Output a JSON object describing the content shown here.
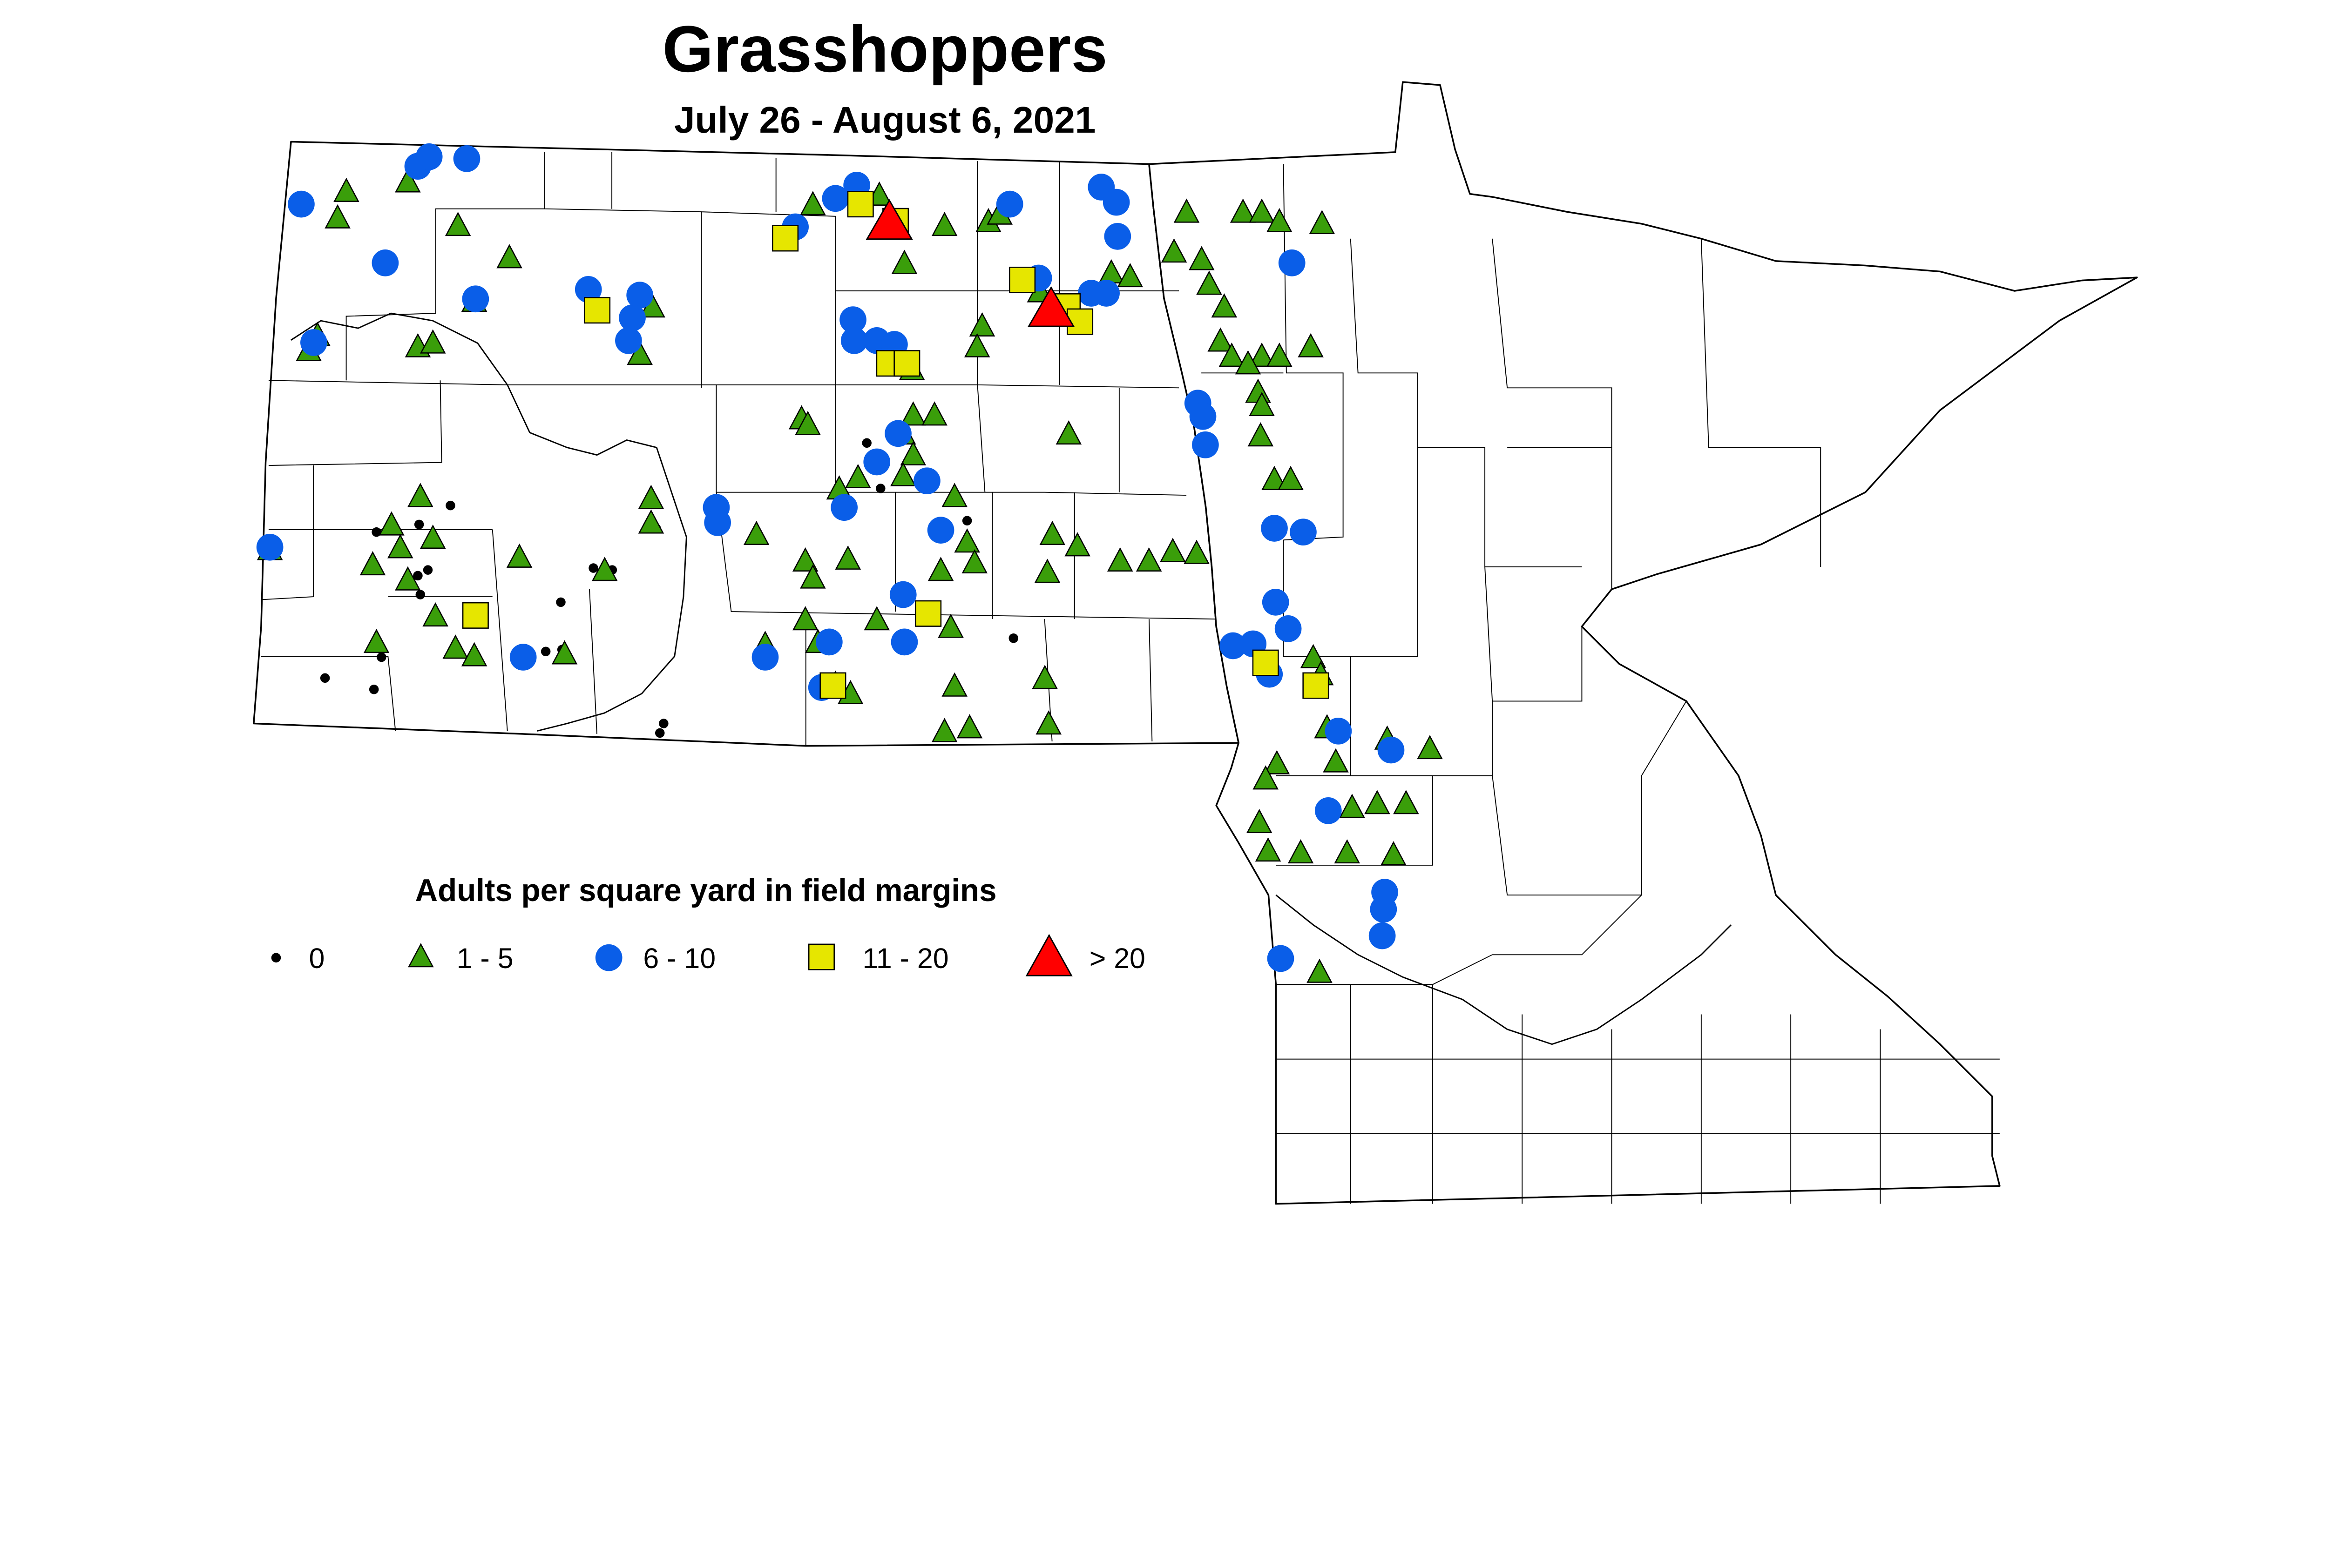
{
  "title": "Grasshoppers",
  "subtitle": "July 26 - August 6, 2021",
  "legend": {
    "title": "Adults per square yard in field margins",
    "items": [
      {
        "key": "zero",
        "label": "0",
        "shape": "dot",
        "color": "#000000"
      },
      {
        "key": "low",
        "label": "1 - 5",
        "shape": "triangle",
        "color": "#3a9e0a"
      },
      {
        "key": "mid",
        "label": "6 - 10",
        "shape": "circle",
        "color": "#0a5ee8"
      },
      {
        "key": "high",
        "label": "11 - 20",
        "shape": "square",
        "color": "#e6e600"
      },
      {
        "key": "severe",
        "label": "> 20",
        "shape": "large-triangle",
        "color": "#ff0000"
      }
    ]
  },
  "chart_data": {
    "type": "map",
    "regions": [
      "North Dakota",
      "Minnesota"
    ],
    "points": {
      "zero": [
        [
          -99.28,
          47.45
        ],
        [
          -99.17,
          47.21
        ],
        [
          -98.48,
          47.04
        ],
        [
          -102.6,
          47.12
        ],
        [
          -103.19,
          46.98
        ],
        [
          -102.85,
          47.02
        ],
        [
          -102.78,
          46.78
        ],
        [
          -102.86,
          46.75
        ],
        [
          -102.84,
          46.65
        ],
        [
          -101.72,
          46.61
        ],
        [
          -101.31,
          46.78
        ],
        [
          -101.46,
          46.79
        ],
        [
          -103.15,
          46.32
        ],
        [
          -101.84,
          46.35
        ],
        [
          -101.71,
          46.36
        ],
        [
          -100.96,
          47.0
        ],
        [
          -103.6,
          46.21
        ],
        [
          -103.21,
          46.15
        ],
        [
          -100.9,
          45.97
        ],
        [
          -100.93,
          45.92
        ],
        [
          -98.11,
          46.42
        ]
      ],
      "low": [
        [
          -103.43,
          48.78
        ],
        [
          -103.5,
          48.64
        ],
        [
          -102.94,
          48.83
        ],
        [
          -102.54,
          48.6
        ],
        [
          -102.13,
          48.43
        ],
        [
          -102.41,
          48.2
        ],
        [
          -103.66,
          48.02
        ],
        [
          -103.73,
          47.94
        ],
        [
          -102.86,
          47.96
        ],
        [
          -102.74,
          47.98
        ],
        [
          -100.99,
          48.17
        ],
        [
          -101.09,
          47.92
        ],
        [
          -99.71,
          48.71
        ],
        [
          -99.18,
          48.76
        ],
        [
          -98.66,
          48.6
        ],
        [
          -98.98,
          48.4
        ],
        [
          -98.31,
          48.62
        ],
        [
          -98.22,
          48.66
        ],
        [
          -98.36,
          48.07
        ],
        [
          -98.4,
          47.96
        ],
        [
          -98.92,
          47.84
        ],
        [
          -97.9,
          48.25
        ],
        [
          -97.33,
          48.35
        ],
        [
          -97.18,
          48.33
        ],
        [
          -96.73,
          48.67
        ],
        [
          -96.83,
          48.46
        ],
        [
          -96.61,
          48.42
        ],
        [
          -96.55,
          48.29
        ],
        [
          -96.43,
          48.17
        ],
        [
          -96.28,
          48.67
        ],
        [
          -96.13,
          48.67
        ],
        [
          -95.99,
          48.62
        ],
        [
          -95.65,
          48.61
        ],
        [
          -96.46,
          47.99
        ],
        [
          -96.37,
          47.91
        ],
        [
          -96.13,
          47.91
        ],
        [
          -95.99,
          47.91
        ],
        [
          -95.74,
          47.96
        ],
        [
          -96.24,
          47.87
        ],
        [
          -96.16,
          47.72
        ],
        [
          -96.13,
          47.65
        ],
        [
          -96.14,
          47.49
        ],
        [
          -96.03,
          47.26
        ],
        [
          -95.9,
          47.26
        ],
        [
          -99.8,
          47.58
        ],
        [
          -99.75,
          47.55
        ],
        [
          -98.91,
          47.6
        ],
        [
          -98.74,
          47.6
        ],
        [
          -98.99,
          47.5
        ],
        [
          -98.91,
          47.39
        ],
        [
          -99.5,
          47.21
        ],
        [
          -99.35,
          47.27
        ],
        [
          -98.99,
          47.28
        ],
        [
          -98.58,
          47.17
        ],
        [
          -98.48,
          46.93
        ],
        [
          -98.42,
          46.82
        ],
        [
          -98.69,
          46.78
        ],
        [
          -99.43,
          46.84
        ],
        [
          -99.77,
          46.83
        ],
        [
          -99.71,
          46.74
        ],
        [
          -100.16,
          46.97
        ],
        [
          -101.0,
          47.16
        ],
        [
          -101.0,
          47.03
        ],
        [
          -102.05,
          46.85
        ],
        [
          -101.37,
          46.78
        ],
        [
          -102.84,
          47.17
        ],
        [
          -102.74,
          46.95
        ],
        [
          -103.07,
          47.02
        ],
        [
          -103.0,
          46.9
        ],
        [
          -103.22,
          46.81
        ],
        [
          -102.94,
          46.73
        ],
        [
          -104.04,
          46.89
        ],
        [
          -102.72,
          46.54
        ],
        [
          -102.56,
          46.37
        ],
        [
          -102.41,
          46.33
        ],
        [
          -103.19,
          46.4
        ],
        [
          -101.69,
          46.34
        ],
        [
          -99.77,
          46.52
        ],
        [
          -99.67,
          46.4
        ],
        [
          -100.09,
          46.39
        ],
        [
          -99.53,
          46.18
        ],
        [
          -99.41,
          46.13
        ],
        [
          -99.2,
          46.52
        ],
        [
          -98.61,
          46.48
        ],
        [
          -98.58,
          46.17
        ],
        [
          -97.86,
          46.21
        ],
        [
          -97.83,
          45.97
        ],
        [
          -98.66,
          45.93
        ],
        [
          -98.46,
          45.95
        ],
        [
          -97.67,
          47.5
        ],
        [
          -97.8,
          46.97
        ],
        [
          -97.6,
          46.91
        ],
        [
          -97.84,
          46.77
        ],
        [
          -97.26,
          46.83
        ],
        [
          -97.03,
          46.83
        ],
        [
          -96.84,
          46.88
        ],
        [
          -96.65,
          46.87
        ],
        [
          -95.72,
          46.32
        ],
        [
          -95.66,
          46.23
        ],
        [
          -95.61,
          45.95
        ],
        [
          -95.13,
          45.89
        ],
        [
          -94.79,
          45.84
        ],
        [
          -95.54,
          45.77
        ],
        [
          -96.01,
          45.76
        ],
        [
          -96.1,
          45.68
        ],
        [
          -96.15,
          45.45
        ],
        [
          -96.08,
          45.3
        ],
        [
          -95.82,
          45.29
        ],
        [
          -95.41,
          45.53
        ],
        [
          -95.21,
          45.55
        ],
        [
          -94.98,
          45.55
        ],
        [
          -95.45,
          45.29
        ],
        [
          -95.08,
          45.28
        ],
        [
          -95.67,
          44.66
        ]
      ],
      "mid": [
        [
          -103.79,
          48.71
        ],
        [
          -102.86,
          48.91
        ],
        [
          -102.77,
          48.96
        ],
        [
          -102.47,
          48.95
        ],
        [
          -103.12,
          48.4
        ],
        [
          -102.4,
          48.21
        ],
        [
          -101.5,
          48.26
        ],
        [
          -101.09,
          48.23
        ],
        [
          -101.15,
          48.11
        ],
        [
          -101.18,
          47.99
        ],
        [
          -99.85,
          48.59
        ],
        [
          -99.53,
          48.74
        ],
        [
          -99.36,
          48.81
        ],
        [
          -99.39,
          48.1
        ],
        [
          -99.38,
          47.99
        ],
        [
          -99.2,
          47.99
        ],
        [
          -99.06,
          47.97
        ],
        [
          -99.03,
          47.5
        ],
        [
          -99.2,
          47.35
        ],
        [
          -98.8,
          47.25
        ],
        [
          -99.46,
          47.11
        ],
        [
          -98.69,
          46.99
        ],
        [
          -98.14,
          48.71
        ],
        [
          -97.41,
          48.8
        ],
        [
          -97.29,
          48.72
        ],
        [
          -97.28,
          48.54
        ],
        [
          -97.91,
          48.32
        ],
        [
          -97.49,
          48.24
        ],
        [
          -97.37,
          48.24
        ],
        [
          -95.89,
          48.4
        ],
        [
          -96.64,
          47.66
        ],
        [
          -96.6,
          47.59
        ],
        [
          -96.58,
          47.44
        ],
        [
          -96.03,
          47.0
        ],
        [
          -95.8,
          46.98
        ],
        [
          -96.02,
          46.61
        ],
        [
          -95.92,
          46.47
        ],
        [
          -96.36,
          46.38
        ],
        [
          -96.2,
          46.39
        ],
        [
          -96.07,
          46.23
        ],
        [
          -98.99,
          46.65
        ],
        [
          -98.98,
          46.4
        ],
        [
          -99.58,
          46.4
        ],
        [
          -99.64,
          46.16
        ],
        [
          -100.09,
          46.32
        ],
        [
          -102.02,
          46.32
        ],
        [
          -100.48,
          47.11
        ],
        [
          -100.47,
          47.03
        ],
        [
          -104.04,
          46.9
        ],
        [
          -95.52,
          45.93
        ],
        [
          -95.1,
          45.83
        ],
        [
          -95.6,
          45.51
        ],
        [
          -95.15,
          45.08
        ],
        [
          -95.16,
          44.99
        ],
        [
          -95.17,
          44.85
        ],
        [
          -95.98,
          44.73
        ],
        [
          -103.69,
          47.98
        ]
      ],
      "high": [
        [
          -99.93,
          48.53
        ],
        [
          -99.33,
          48.71
        ],
        [
          -99.05,
          48.62
        ],
        [
          -98.04,
          48.31
        ],
        [
          -97.68,
          48.17
        ],
        [
          -97.58,
          48.09
        ],
        [
          -99.1,
          47.87
        ],
        [
          -98.96,
          47.87
        ],
        [
          -101.43,
          48.15
        ],
        [
          -102.4,
          46.54
        ],
        [
          -98.79,
          46.55
        ],
        [
          -99.55,
          46.17
        ],
        [
          -96.1,
          46.29
        ],
        [
          -95.7,
          46.17
        ]
      ],
      "severe": [
        [
          -99.1,
          48.62
        ],
        [
          -97.81,
          48.16
        ]
      ]
    }
  }
}
